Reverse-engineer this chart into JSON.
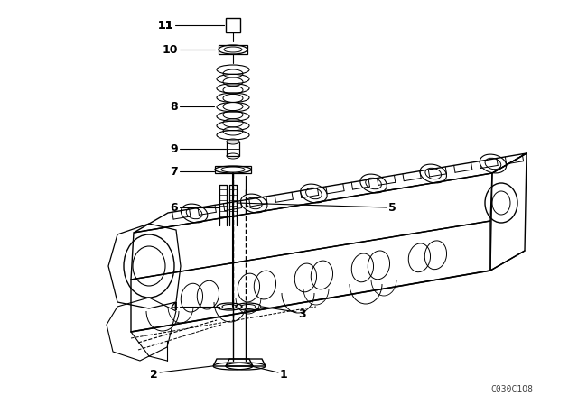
{
  "bg_color": "#ffffff",
  "lc": "#000000",
  "fig_width": 6.4,
  "fig_height": 4.48,
  "dpi": 100,
  "watermark": "C030C1O8"
}
